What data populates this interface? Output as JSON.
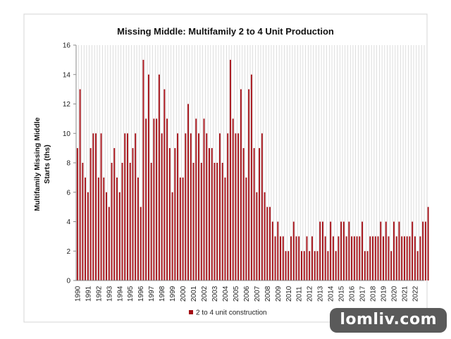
{
  "watermark": "lomliv.com",
  "chart_data": {
    "type": "bar",
    "title": "Missing Middle: Multifamily 2 to 4 Unit Production",
    "xlabel": "",
    "ylabel_lines": [
      "Multifamily Missing Middle",
      "Starts (ths)"
    ],
    "ylim": [
      0,
      16
    ],
    "yticks": [
      0,
      2,
      4,
      6,
      8,
      10,
      12,
      14,
      16
    ],
    "grid": "vertical",
    "legend_position": "bottom",
    "bar_color": "#a40d14",
    "year_labels": [
      "1990",
      "1991",
      "1992",
      "1993",
      "1994",
      "1995",
      "1996",
      "1997",
      "1998",
      "1999",
      "2000",
      "2001",
      "2002",
      "2003",
      "2004",
      "2005",
      "2006",
      "2007",
      "2008",
      "2009",
      "2010",
      "2011",
      "2012",
      "2013",
      "2014",
      "2015",
      "2016",
      "2017",
      "2018",
      "2019",
      "2020",
      "2021",
      "2022"
    ],
    "periods_per_year": 4,
    "series": [
      {
        "name": "2 to 4 unit construction",
        "values": [
          9,
          13,
          8,
          7,
          6,
          9,
          10,
          10,
          7,
          10,
          7,
          6,
          5,
          8,
          9,
          7,
          6,
          8,
          10,
          10,
          8,
          9,
          10,
          7,
          5,
          15,
          11,
          14,
          8,
          11,
          11,
          14,
          10,
          13,
          11,
          9,
          6,
          9,
          10,
          7,
          7,
          10,
          12,
          10,
          8,
          11,
          10,
          8,
          11,
          10,
          9,
          9,
          8,
          8,
          10,
          8,
          7,
          10,
          15,
          11,
          10,
          10,
          13,
          9,
          7,
          13,
          14,
          9,
          6,
          9,
          10,
          6,
          5,
          5,
          4,
          3,
          4,
          3,
          3,
          2,
          2,
          3,
          4,
          3,
          3,
          2,
          2,
          3,
          2,
          3,
          2,
          2,
          4,
          4,
          3,
          2,
          4,
          3,
          2,
          3,
          4,
          4,
          3,
          4,
          3,
          3,
          3,
          3,
          4,
          2,
          2,
          3,
          3,
          3,
          3,
          4,
          3,
          4,
          3,
          2,
          4,
          3,
          4,
          3,
          3,
          3,
          3,
          4,
          3,
          2,
          3,
          4,
          4,
          5
        ]
      }
    ]
  }
}
